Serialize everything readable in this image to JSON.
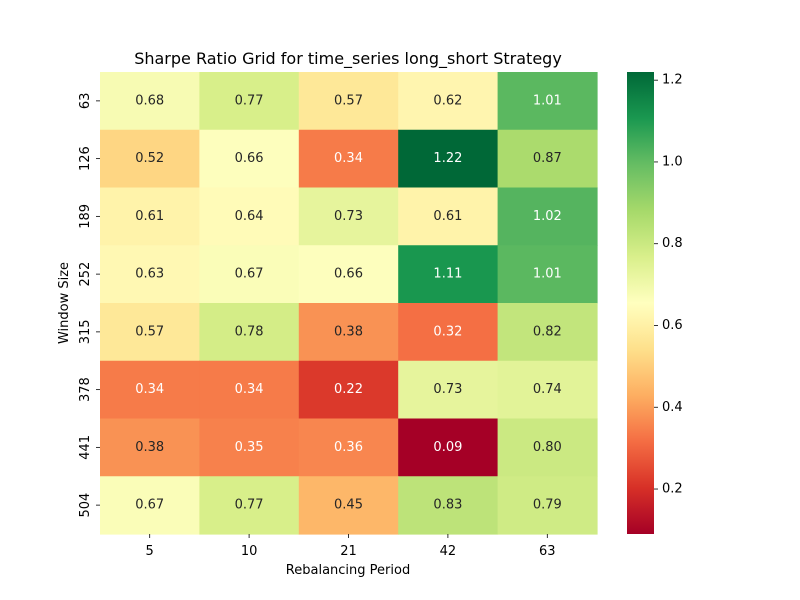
{
  "chart_data": {
    "type": "heatmap",
    "title": "Sharpe Ratio Grid for time_series long_short Strategy",
    "xlabel": "Rebalancing Period",
    "ylabel": "Window Size",
    "x_categories": [
      "5",
      "10",
      "21",
      "42",
      "63"
    ],
    "y_categories": [
      "63",
      "126",
      "189",
      "252",
      "315",
      "378",
      "441",
      "504"
    ],
    "values": [
      [
        0.68,
        0.77,
        0.57,
        0.62,
        1.01
      ],
      [
        0.52,
        0.66,
        0.34,
        1.22,
        0.87
      ],
      [
        0.61,
        0.64,
        0.73,
        0.61,
        1.02
      ],
      [
        0.63,
        0.67,
        0.66,
        1.11,
        1.01
      ],
      [
        0.57,
        0.78,
        0.38,
        0.32,
        0.82
      ],
      [
        0.34,
        0.34,
        0.22,
        0.73,
        0.74
      ],
      [
        0.38,
        0.35,
        0.36,
        0.09,
        0.8
      ],
      [
        0.67,
        0.77,
        0.45,
        0.83,
        0.79
      ]
    ],
    "labels": [
      [
        "0.68",
        "0.77",
        "0.57",
        "0.62",
        "1.01"
      ],
      [
        "0.52",
        "0.66",
        "0.34",
        "1.22",
        "0.87"
      ],
      [
        "0.61",
        "0.64",
        "0.73",
        "0.61",
        "1.02"
      ],
      [
        "0.63",
        "0.67",
        "0.66",
        "1.11",
        "1.01"
      ],
      [
        "0.57",
        "0.78",
        "0.38",
        "0.32",
        "0.82"
      ],
      [
        "0.34",
        "0.34",
        "0.22",
        "0.73",
        "0.74"
      ],
      [
        "0.38",
        "0.35",
        "0.36",
        "0.09",
        "0.80"
      ],
      [
        "0.67",
        "0.77",
        "0.45",
        "0.83",
        "0.79"
      ]
    ],
    "colormap": "RdYlGn",
    "colorbar": {
      "range": [
        0.09,
        1.22
      ],
      "ticks": [
        0.2,
        0.4,
        0.6,
        0.8,
        1.0,
        1.2
      ],
      "tick_labels": [
        "0.2",
        "0.4",
        "0.6",
        "0.8",
        "1.0",
        "1.2"
      ]
    },
    "grid": false,
    "annotation_dark_color": "#262626",
    "annotation_light_color": "#ffffff"
  }
}
